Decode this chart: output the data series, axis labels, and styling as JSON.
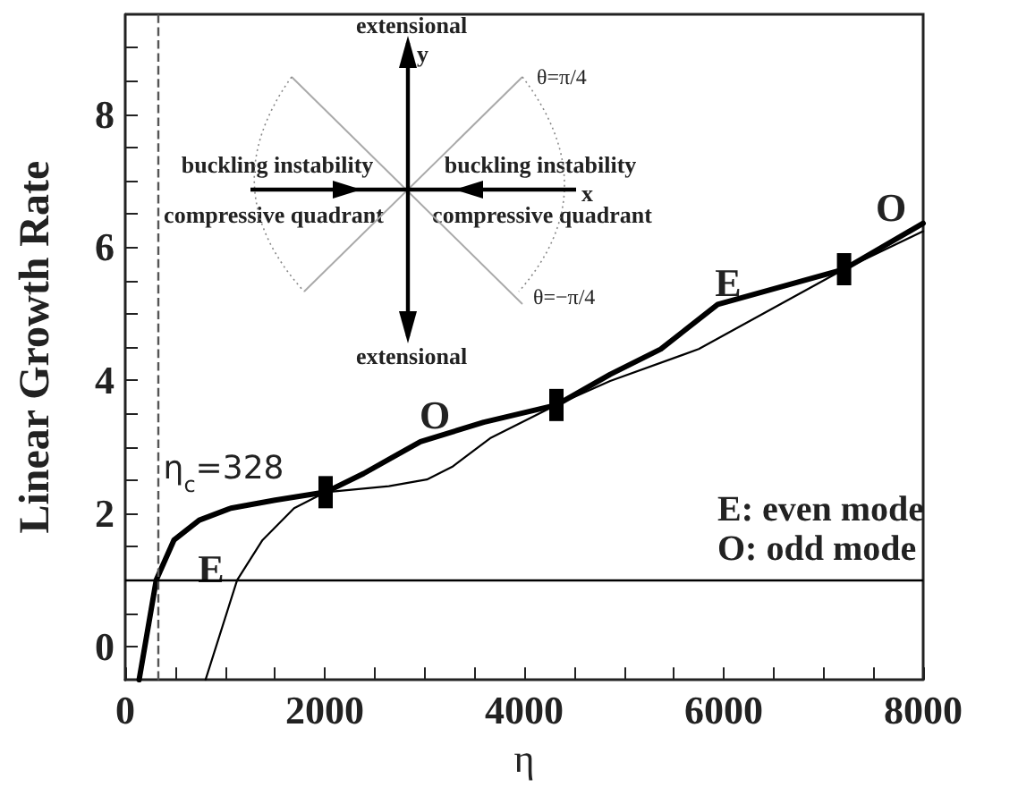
{
  "chart_data": {
    "type": "line",
    "xlabel": "η",
    "ylabel": "Linear Growth Rate",
    "xlim": [
      0,
      8000
    ],
    "ylim": [
      -0.5,
      9.5
    ],
    "xticks": [
      0,
      {
        "value": 500,
        "label": null
      },
      {
        "value": 1000,
        "label": null
      },
      {
        "value": 1500,
        "label": null
      },
      2000,
      {
        "value": 2500,
        "label": null
      },
      {
        "value": 3000,
        "label": null
      },
      {
        "value": 3500,
        "label": null
      },
      4000,
      {
        "value": 4500,
        "label": null
      },
      {
        "value": 5000,
        "label": null
      },
      {
        "value": 5500,
        "label": null
      },
      6000,
      {
        "value": 6500,
        "label": null
      },
      {
        "value": 7000,
        "label": null
      },
      {
        "value": 7500,
        "label": null
      },
      8000
    ],
    "yticks": [
      0,
      {
        "value": 0.5,
        "label": null
      },
      {
        "value": 1,
        "label": null
      },
      {
        "value": 1.5,
        "label": null
      },
      2,
      {
        "value": 2.5,
        "label": null
      },
      {
        "value": 3,
        "label": null
      },
      {
        "value": 3.5,
        "label": null
      },
      4,
      {
        "value": 4.5,
        "label": null
      },
      {
        "value": 5,
        "label": null
      },
      {
        "value": 5.5,
        "label": null
      },
      6,
      {
        "value": 6.5,
        "label": null
      },
      {
        "value": 7,
        "label": null
      },
      {
        "value": 7.5,
        "label": null
      },
      8,
      {
        "value": 8.5,
        "label": null
      },
      {
        "value": 9,
        "label": null
      }
    ],
    "marker": "none",
    "series": [
      {
        "color": "#000000",
        "x": [
          139,
          311,
          488,
          742,
          1059,
          1502,
          2009,
          2390,
          2960,
          3594,
          4323,
          4862,
          5369,
          5940,
          7207,
          8000
        ],
        "values": [
          -0.5,
          1.0,
          1.6,
          1.9,
          2.08,
          2.2,
          2.32,
          2.6,
          3.08,
          3.37,
          3.63,
          4.09,
          4.47,
          5.14,
          5.67,
          6.36
        ]
      },
      {
        "color": "#000000",
        "x": [
          805,
          1122,
          1376,
          1693,
          2009,
          2643,
          3024,
          3277,
          3658,
          4323,
          4862,
          5750,
          7207,
          8000
        ],
        "values": [
          -0.5,
          1.0,
          1.6,
          2.08,
          2.32,
          2.41,
          2.51,
          2.7,
          3.13,
          3.63,
          3.99,
          4.47,
          5.67,
          6.24
        ]
      },
      {
        "type": "scatter",
        "marker": "square",
        "color": "#000000",
        "x": [
          2009,
          4323,
          7207
        ],
        "values": [
          2.32,
          3.63,
          5.67
        ]
      }
    ],
    "ref_lines": [
      {
        "axis": "x",
        "value": 328,
        "label": "η$_{c}$=328",
        "line_style": "dashed",
        "color": "#555555"
      },
      {
        "axis": "y",
        "value": 1,
        "color": "#000000"
      }
    ],
    "annotations": [
      "E",
      "O",
      "E",
      "O",
      "E: even mode",
      "O: odd mode",
      "extensional",
      "y",
      "buckling instability",
      "buckling instability",
      "x",
      "compressive quadrant",
      "compressive quadrant",
      "θ=π/4",
      "θ=−π/4",
      "extensional"
    ]
  }
}
